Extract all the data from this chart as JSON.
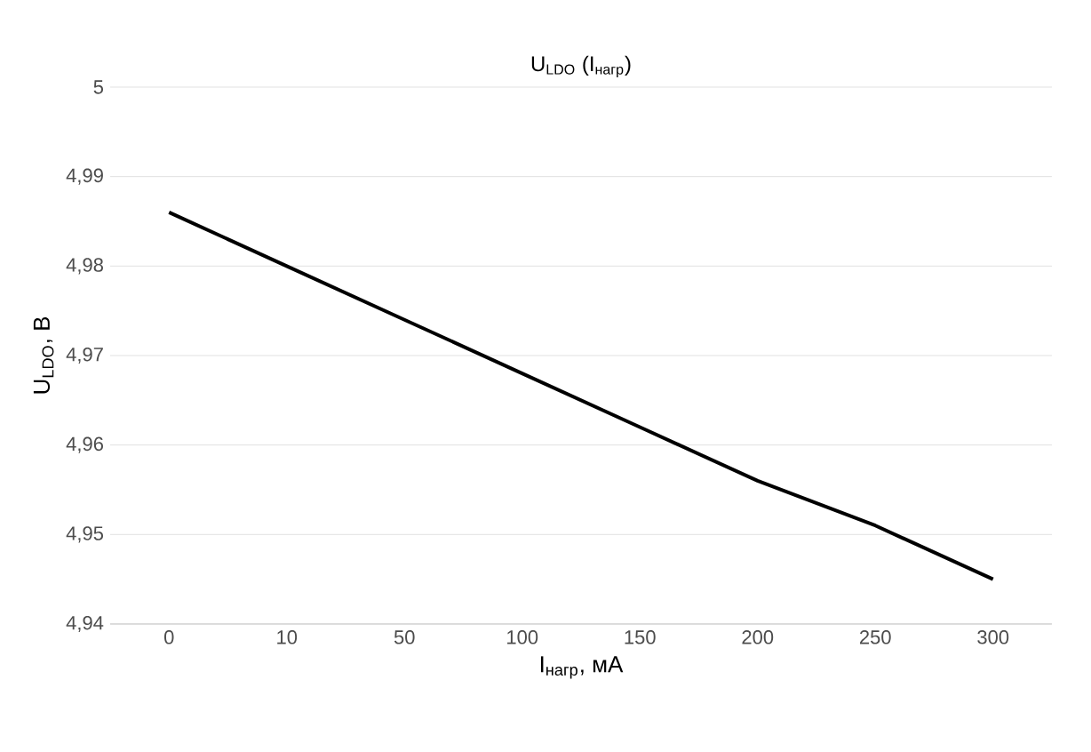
{
  "chart_data": {
    "type": "line",
    "title": "U$_{LDO}$ (I$_{нагр}$)",
    "xlabel": "I$_{нагр}$, мА",
    "ylabel": "U$_{LDO}$, В",
    "categories": [
      "0",
      "10",
      "50",
      "100",
      "150",
      "200",
      "250",
      "300"
    ],
    "series": [
      {
        "color": "#000000",
        "values": [
          4.986,
          4.98,
          4.974,
          4.968,
          4.962,
          4.956,
          4.951,
          4.945
        ]
      }
    ],
    "ylim": [
      4.94,
      5.0
    ],
    "yticks": [
      {
        "value": 4.94,
        "label": "4,94"
      },
      {
        "value": 4.95,
        "label": "4,95"
      },
      {
        "value": 4.96,
        "label": "4,96"
      },
      {
        "value": 4.97,
        "label": "4,97"
      },
      {
        "value": 4.98,
        "label": "4,98"
      },
      {
        "value": 4.99,
        "label": "4,99"
      },
      {
        "value": 5.0,
        "label": "5"
      }
    ],
    "grid": "y",
    "marker": "none",
    "line_style": "solid"
  }
}
